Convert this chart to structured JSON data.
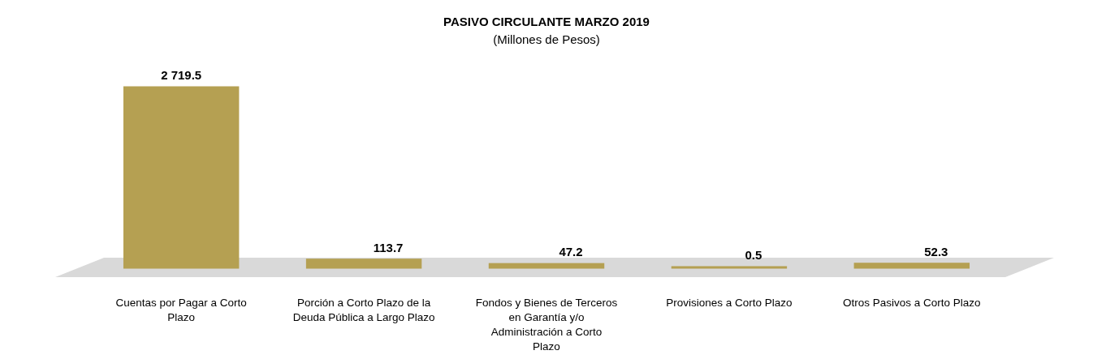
{
  "chart_data": {
    "type": "bar",
    "title": "PASIVO CIRCULANTE  MARZO  2019",
    "subtitle": "(Millones de Pesos)",
    "categories": [
      "Cuentas por Pagar a Corto Plazo",
      "Porción a Corto Plazo de la Deuda Pública a Largo Plazo",
      "Fondos y Bienes de Terceros en Garantía y/o Administración a Corto Plazo",
      "Provisiones a Corto Plazo",
      "Otros Pasivos a Corto Plazo"
    ],
    "values": [
      2719.5,
      113.7,
      47.2,
      0.5,
      52.3
    ],
    "value_labels": [
      "2 719.5",
      "113.7",
      "47.2",
      "0.5",
      "52.3"
    ],
    "color": "#b5a052"
  }
}
